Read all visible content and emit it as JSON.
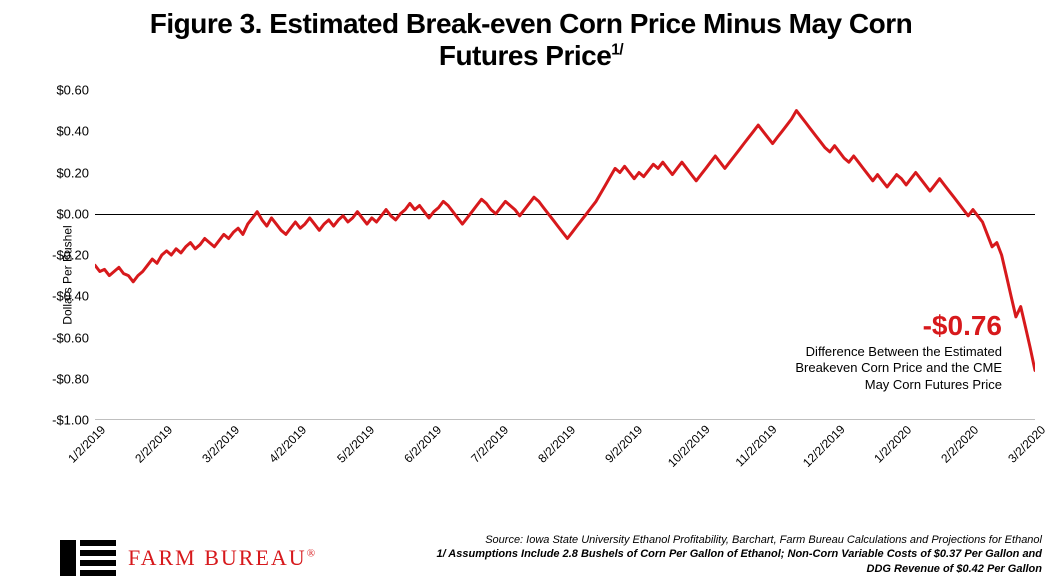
{
  "title_line1": "Figure 3. Estimated Break-even Corn Price Minus May Corn",
  "title_line2": "Futures Price",
  "title_sup": "1/",
  "title_fontsize": 28,
  "title_color": "#000000",
  "chart": {
    "type": "line",
    "ylabel": "Dollars Per Bushel",
    "ylim": [
      -1.0,
      0.6
    ],
    "yticks": [
      0.6,
      0.4,
      0.2,
      0.0,
      -0.2,
      -0.4,
      -0.6,
      -0.8,
      -1.0
    ],
    "ytick_labels": [
      "$0.60",
      "$0.40",
      "$0.20",
      "$0.00",
      "-$0.20",
      "-$0.40",
      "-$0.60",
      "-$0.80",
      "-$1.00"
    ],
    "xtick_labels": [
      "1/2/2019",
      "2/2/2019",
      "3/2/2019",
      "4/2/2019",
      "5/2/2019",
      "6/2/2019",
      "7/2/2019",
      "8/2/2019",
      "9/2/2019",
      "10/2/2019",
      "11/2/2019",
      "12/2/2019",
      "1/2/2020",
      "2/2/2020",
      "3/2/2020"
    ],
    "line_color": "#d7191c",
    "line_width": 3,
    "zero_line_color": "#000000",
    "background_color": "#ffffff",
    "axis_color": "#bfbfbf",
    "tick_fontsize": 13,
    "series": [
      -0.25,
      -0.28,
      -0.27,
      -0.3,
      -0.28,
      -0.26,
      -0.29,
      -0.3,
      -0.33,
      -0.3,
      -0.28,
      -0.25,
      -0.22,
      -0.24,
      -0.2,
      -0.18,
      -0.2,
      -0.17,
      -0.19,
      -0.16,
      -0.14,
      -0.17,
      -0.15,
      -0.12,
      -0.14,
      -0.16,
      -0.13,
      -0.1,
      -0.12,
      -0.09,
      -0.07,
      -0.1,
      -0.05,
      -0.02,
      0.01,
      -0.03,
      -0.06,
      -0.02,
      -0.05,
      -0.08,
      -0.1,
      -0.07,
      -0.04,
      -0.07,
      -0.05,
      -0.02,
      -0.05,
      -0.08,
      -0.05,
      -0.03,
      -0.06,
      -0.03,
      -0.01,
      -0.04,
      -0.02,
      0.01,
      -0.02,
      -0.05,
      -0.02,
      -0.04,
      -0.01,
      0.02,
      -0.01,
      -0.03,
      0.0,
      0.02,
      0.05,
      0.02,
      0.04,
      0.01,
      -0.02,
      0.01,
      0.03,
      0.06,
      0.04,
      0.01,
      -0.02,
      -0.05,
      -0.02,
      0.01,
      0.04,
      0.07,
      0.05,
      0.02,
      0.0,
      0.03,
      0.06,
      0.04,
      0.02,
      -0.01,
      0.02,
      0.05,
      0.08,
      0.06,
      0.03,
      0.0,
      -0.03,
      -0.06,
      -0.09,
      -0.12,
      -0.09,
      -0.06,
      -0.03,
      0.0,
      0.03,
      0.06,
      0.1,
      0.14,
      0.18,
      0.22,
      0.2,
      0.23,
      0.2,
      0.17,
      0.2,
      0.18,
      0.21,
      0.24,
      0.22,
      0.25,
      0.22,
      0.19,
      0.22,
      0.25,
      0.22,
      0.19,
      0.16,
      0.19,
      0.22,
      0.25,
      0.28,
      0.25,
      0.22,
      0.25,
      0.28,
      0.31,
      0.34,
      0.37,
      0.4,
      0.43,
      0.4,
      0.37,
      0.34,
      0.37,
      0.4,
      0.43,
      0.46,
      0.5,
      0.47,
      0.44,
      0.41,
      0.38,
      0.35,
      0.32,
      0.3,
      0.33,
      0.3,
      0.27,
      0.25,
      0.28,
      0.25,
      0.22,
      0.19,
      0.16,
      0.19,
      0.16,
      0.13,
      0.16,
      0.19,
      0.17,
      0.14,
      0.17,
      0.2,
      0.17,
      0.14,
      0.11,
      0.14,
      0.17,
      0.14,
      0.11,
      0.08,
      0.05,
      0.02,
      -0.01,
      0.02,
      -0.01,
      -0.04,
      -0.1,
      -0.16,
      -0.14,
      -0.2,
      -0.3,
      -0.4,
      -0.5,
      -0.45,
      -0.55,
      -0.65,
      -0.76
    ]
  },
  "callout": {
    "value": "-$0.76",
    "value_color": "#d7191c",
    "value_fontsize": 28,
    "line1": "Difference Between the Estimated",
    "line2": "Breakeven Corn Price and the CME",
    "line3": "May Corn Futures Price",
    "text_color": "#000000"
  },
  "logo": {
    "text": "FARM BUREAU",
    "reg": "®",
    "text_color": "#d7191c",
    "mark_color": "#000000"
  },
  "footnotes": {
    "line1": "Source: Iowa State University Ethanol Profitability, Barchart, Farm Bureau Calculations and Projections for Ethanol",
    "line2": "1/ Assumptions Include 2.8 Bushels of Corn Per Gallon of Ethanol; Non-Corn Variable Costs of $0.37 Per Gallon and",
    "line3": "DDG Revenue of $0.42 Per Gallon",
    "color": "#000000"
  }
}
